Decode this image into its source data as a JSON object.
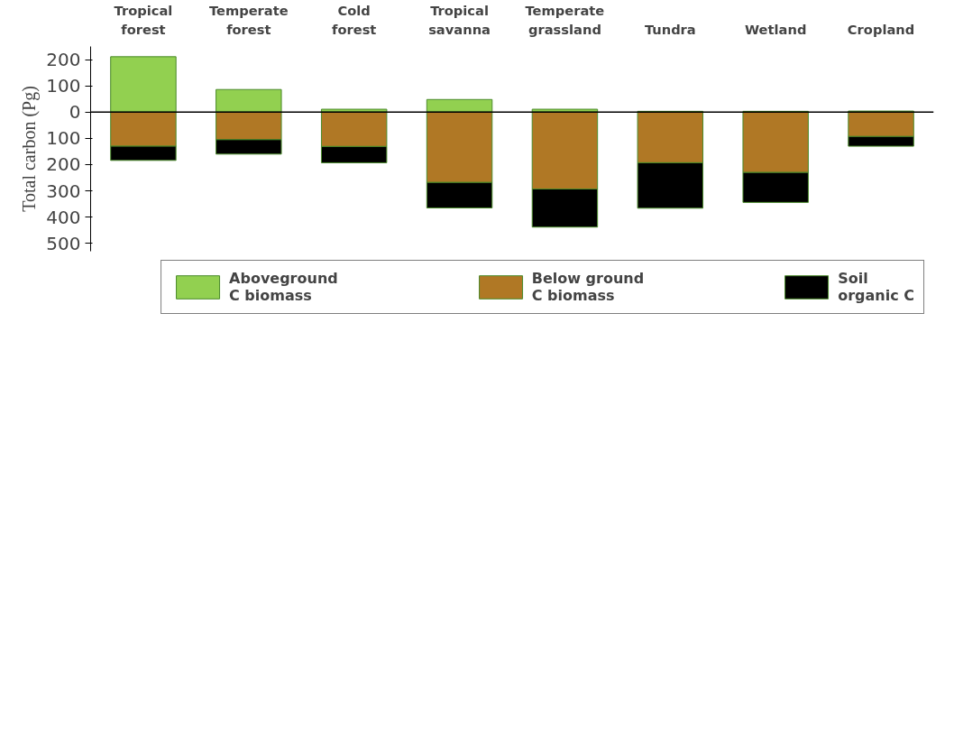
{
  "chart_data": {
    "type": "bar",
    "stacked": true,
    "ylabel": "Total carbon (Pg)",
    "categories": [
      "Tropical\nforest",
      "Temperate\nforest",
      "Cold\nforest",
      "Tropical\nsavanna",
      "Temperate\ngrassland",
      "Tundra",
      "Wetland",
      "Cropland"
    ],
    "series": [
      {
        "name": "Aboveground\nC biomass",
        "color": "#92d050",
        "values": [
          211,
          86,
          11,
          48,
          11,
          3,
          3,
          4
        ]
      },
      {
        "name": "Below ground\nC biomass",
        "color": "#b07825",
        "values": [
          -130,
          -105,
          -131,
          -268,
          -293,
          -193,
          -230,
          -93
        ]
      },
      {
        "name": "Soil\norganic C",
        "color": "#000000",
        "values": [
          -54,
          -55,
          -62,
          -97,
          -145,
          -173,
          -114,
          -37
        ]
      }
    ],
    "ylim": [
      -530,
      250
    ],
    "yticks": [
      {
        "value": -500,
        "label": "500"
      },
      {
        "value": -400,
        "label": "400"
      },
      {
        "value": -300,
        "label": "300"
      },
      {
        "value": -200,
        "label": "200"
      },
      {
        "value": -100,
        "label": "100"
      },
      0,
      100,
      200
    ],
    "ref_lines": [
      {
        "axis": "y",
        "value": 0,
        "color": "#000000"
      }
    ],
    "grid": false,
    "legend": "bottom"
  }
}
